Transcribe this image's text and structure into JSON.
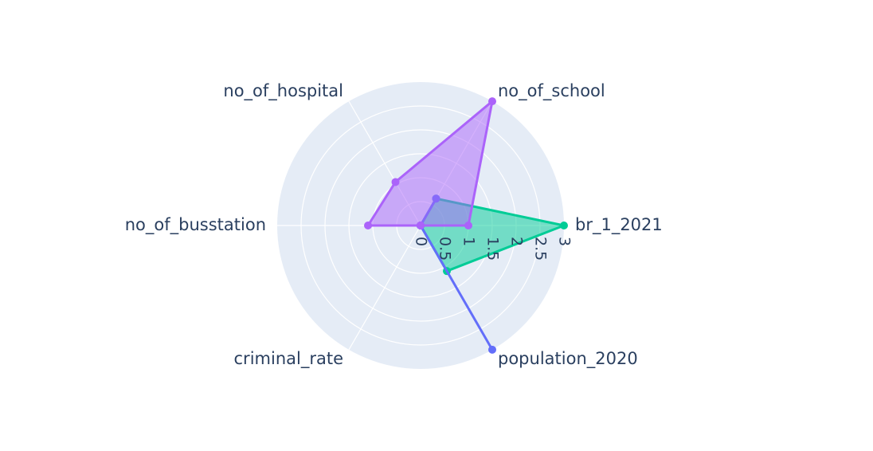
{
  "chart_data": {
    "type": "radar",
    "axes": [
      "br_1_2021",
      "no_of_school",
      "no_of_hospital",
      "no_of_busstation",
      "criminal_rate",
      "population_2020"
    ],
    "radial_range": [
      0,
      3
    ],
    "radial_ticks": [
      "0",
      "0.5",
      "1",
      "1.5",
      "2",
      "2.5",
      "3"
    ],
    "grid": true,
    "legend": false,
    "series": [
      {
        "color": "#00cc96",
        "values": [
          3.0,
          0.65,
          0.0,
          0.0,
          0.0,
          1.1
        ]
      },
      {
        "color": "#636efa",
        "values": [
          0.0,
          0.65,
          0.0,
          0.0,
          0.0,
          3.0
        ]
      },
      {
        "color": "#ab63fa",
        "values": [
          1.0,
          3.0,
          1.05,
          1.1,
          0.0,
          0.0
        ]
      }
    ]
  }
}
